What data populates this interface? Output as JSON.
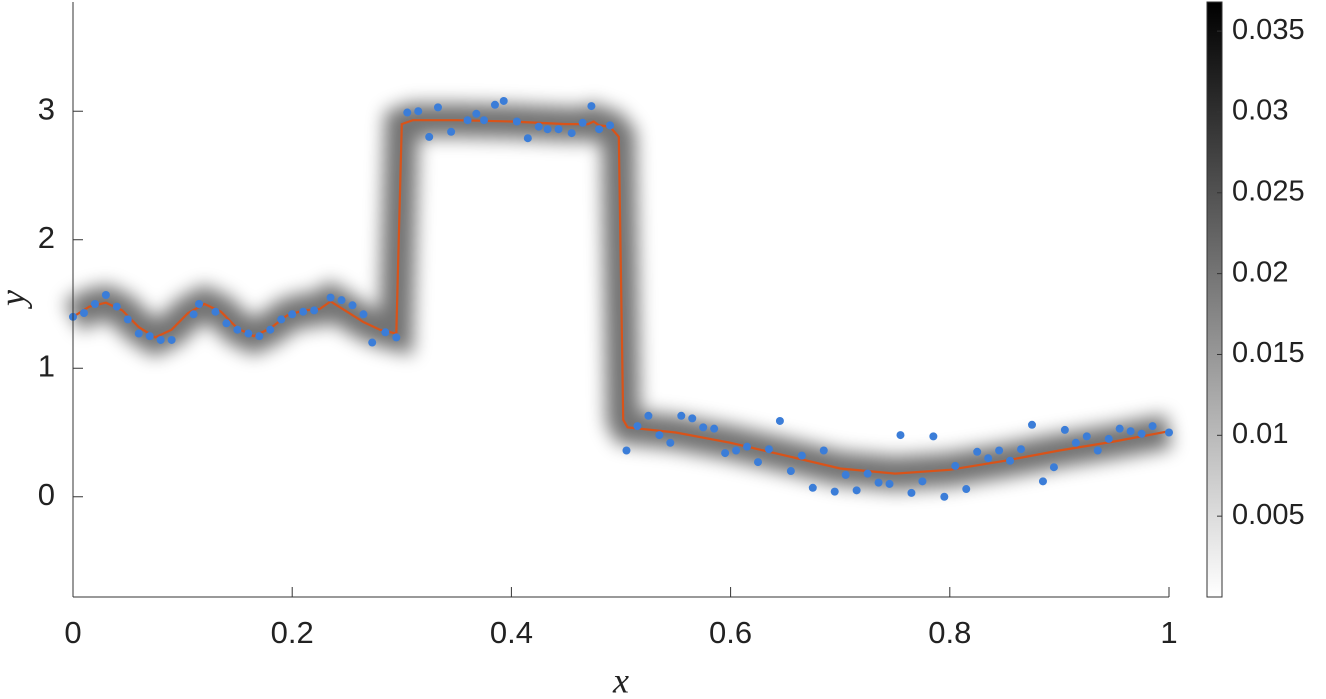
{
  "chart_data": {
    "type": "scatter",
    "xlabel": "x",
    "ylabel": "y",
    "xlim": [
      0,
      1
    ],
    "ylim": [
      -0.78,
      3.85
    ],
    "xticks": [
      0,
      0.2,
      0.4,
      0.6,
      0.8,
      1
    ],
    "yticks": [
      0,
      1,
      2,
      3
    ],
    "series": [
      {
        "type": "line",
        "color": "#d95319",
        "x": [
          0,
          0.015,
          0.03,
          0.045,
          0.06,
          0.075,
          0.09,
          0.105,
          0.12,
          0.135,
          0.15,
          0.165,
          0.18,
          0.195,
          0.21,
          0.225,
          0.235,
          0.25,
          0.265,
          0.28,
          0.295,
          0.3,
          0.31,
          0.35,
          0.4,
          0.45,
          0.47,
          0.475,
          0.48,
          0.49,
          0.498,
          0.502,
          0.506,
          0.55,
          0.6,
          0.65,
          0.7,
          0.75,
          0.8,
          0.85,
          0.9,
          0.95,
          1
        ],
        "values": [
          1.4,
          1.48,
          1.51,
          1.45,
          1.32,
          1.24,
          1.3,
          1.43,
          1.5,
          1.44,
          1.31,
          1.25,
          1.31,
          1.41,
          1.45,
          1.46,
          1.52,
          1.44,
          1.36,
          1.3,
          1.27,
          2.9,
          2.93,
          2.93,
          2.92,
          2.9,
          2.9,
          2.92,
          2.89,
          2.88,
          2.8,
          0.6,
          0.54,
          0.5,
          0.42,
          0.32,
          0.22,
          0.18,
          0.21,
          0.28,
          0.36,
          0.43,
          0.51
        ]
      },
      {
        "type": "scatter",
        "color": "#3b7dd8",
        "x": [
          0,
          0.01,
          0.02,
          0.03,
          0.04,
          0.05,
          0.06,
          0.07,
          0.08,
          0.09,
          0.11,
          0.115,
          0.13,
          0.14,
          0.15,
          0.16,
          0.17,
          0.18,
          0.19,
          0.2,
          0.21,
          0.22,
          0.235,
          0.245,
          0.255,
          0.265,
          0.273,
          0.285,
          0.295,
          0.305,
          0.315,
          0.325,
          0.333,
          0.345,
          0.36,
          0.368,
          0.375,
          0.385,
          0.393,
          0.405,
          0.415,
          0.425,
          0.433,
          0.443,
          0.455,
          0.465,
          0.473,
          0.48,
          0.49,
          0.505,
          0.515,
          0.525,
          0.535,
          0.545,
          0.555,
          0.565,
          0.575,
          0.585,
          0.595,
          0.605,
          0.615,
          0.625,
          0.635,
          0.645,
          0.655,
          0.665,
          0.675,
          0.685,
          0.695,
          0.705,
          0.715,
          0.725,
          0.735,
          0.745,
          0.755,
          0.765,
          0.775,
          0.785,
          0.795,
          0.805,
          0.815,
          0.825,
          0.835,
          0.845,
          0.855,
          0.865,
          0.875,
          0.885,
          0.895,
          0.905,
          0.915,
          0.925,
          0.935,
          0.945,
          0.955,
          0.965,
          0.975,
          0.985,
          1.0
        ],
        "values": [
          1.4,
          1.43,
          1.5,
          1.57,
          1.48,
          1.38,
          1.27,
          1.25,
          1.22,
          1.22,
          1.42,
          1.5,
          1.44,
          1.35,
          1.3,
          1.27,
          1.25,
          1.3,
          1.38,
          1.42,
          1.44,
          1.45,
          1.55,
          1.53,
          1.49,
          1.42,
          1.2,
          1.28,
          1.24,
          2.99,
          3.0,
          2.8,
          3.03,
          2.84,
          2.93,
          2.98,
          2.93,
          3.05,
          3.08,
          2.92,
          2.79,
          2.88,
          2.86,
          2.86,
          2.83,
          2.91,
          3.04,
          2.86,
          2.89,
          0.36,
          0.55,
          0.63,
          0.48,
          0.42,
          0.63,
          0.61,
          0.54,
          0.53,
          0.34,
          0.36,
          0.39,
          0.27,
          0.37,
          0.59,
          0.2,
          0.32,
          0.07,
          0.36,
          0.04,
          0.17,
          0.05,
          0.18,
          0.11,
          0.1,
          0.48,
          0.03,
          0.12,
          0.47,
          0.0,
          0.24,
          0.06,
          0.35,
          0.3,
          0.36,
          0.28,
          0.37,
          0.56,
          0.12,
          0.23,
          0.52,
          0.42,
          0.47,
          0.36,
          0.45,
          0.53,
          0.51,
          0.49,
          0.55,
          0.5
        ]
      }
    ],
    "colorbar": {
      "colormap": [
        "#ffffff",
        "#000000"
      ],
      "clim": [
        0,
        0.0368
      ],
      "ticks": [
        0.005,
        0.01,
        0.015,
        0.02,
        0.025,
        0.03,
        0.035
      ]
    }
  }
}
